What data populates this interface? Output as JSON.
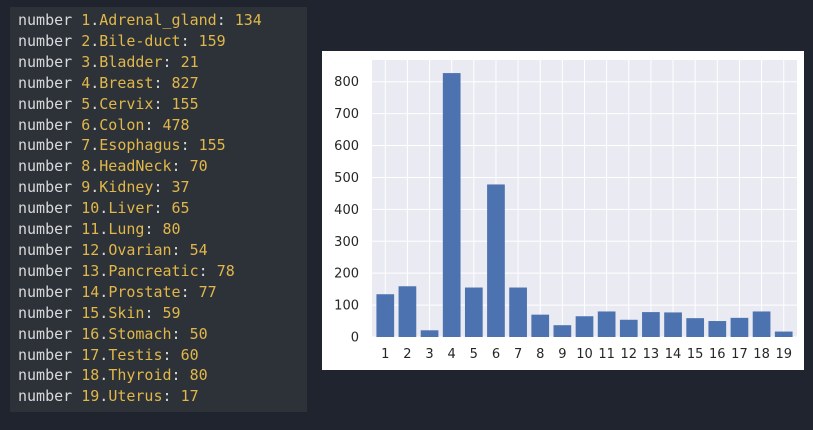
{
  "output": {
    "prefix": "number",
    "lines": [
      {
        "idx": "1",
        "name": "Adrenal_gland",
        "count": "134"
      },
      {
        "idx": "2",
        "name": "Bile-duct",
        "count": "159"
      },
      {
        "idx": "3",
        "name": "Bladder",
        "count": "21"
      },
      {
        "idx": "4",
        "name": "Breast",
        "count": "827"
      },
      {
        "idx": "5",
        "name": "Cervix",
        "count": "155"
      },
      {
        "idx": "6",
        "name": "Colon",
        "count": "478"
      },
      {
        "idx": "7",
        "name": "Esophagus",
        "count": "155"
      },
      {
        "idx": "8",
        "name": "HeadNeck",
        "count": "70"
      },
      {
        "idx": "9",
        "name": "Kidney",
        "count": "37"
      },
      {
        "idx": "10",
        "name": "Liver",
        "count": "65"
      },
      {
        "idx": "11",
        "name": "Lung",
        "count": "80"
      },
      {
        "idx": "12",
        "name": "Ovarian",
        "count": "54"
      },
      {
        "idx": "13",
        "name": "Pancreatic",
        "count": "78"
      },
      {
        "idx": "14",
        "name": "Prostate",
        "count": "77"
      },
      {
        "idx": "15",
        "name": "Skin",
        "count": "59"
      },
      {
        "idx": "16",
        "name": "Stomach",
        "count": "50"
      },
      {
        "idx": "17",
        "name": "Testis",
        "count": "60"
      },
      {
        "idx": "18",
        "name": "Thyroid",
        "count": "80"
      },
      {
        "idx": "19",
        "name": "Uterus",
        "count": "17"
      }
    ]
  },
  "colors": {
    "background": "#1f242e",
    "panel": "#2d3238",
    "text": "#d9dadc",
    "highlight": "#e1b74a",
    "plot_bg": "#eaeaf2",
    "bar": "#4c72b0"
  },
  "chart_data": {
    "type": "bar",
    "categories": [
      "1",
      "2",
      "3",
      "4",
      "5",
      "6",
      "7",
      "8",
      "9",
      "10",
      "11",
      "12",
      "13",
      "14",
      "15",
      "16",
      "17",
      "18",
      "19"
    ],
    "values": [
      134,
      159,
      21,
      827,
      155,
      478,
      155,
      70,
      37,
      65,
      80,
      54,
      78,
      77,
      59,
      50,
      60,
      80,
      17
    ],
    "yticks": [
      0,
      100,
      200,
      300,
      400,
      500,
      600,
      700,
      800
    ],
    "ylim": [
      0,
      868
    ],
    "grid": true,
    "title": "",
    "xlabel": "",
    "ylabel": ""
  }
}
